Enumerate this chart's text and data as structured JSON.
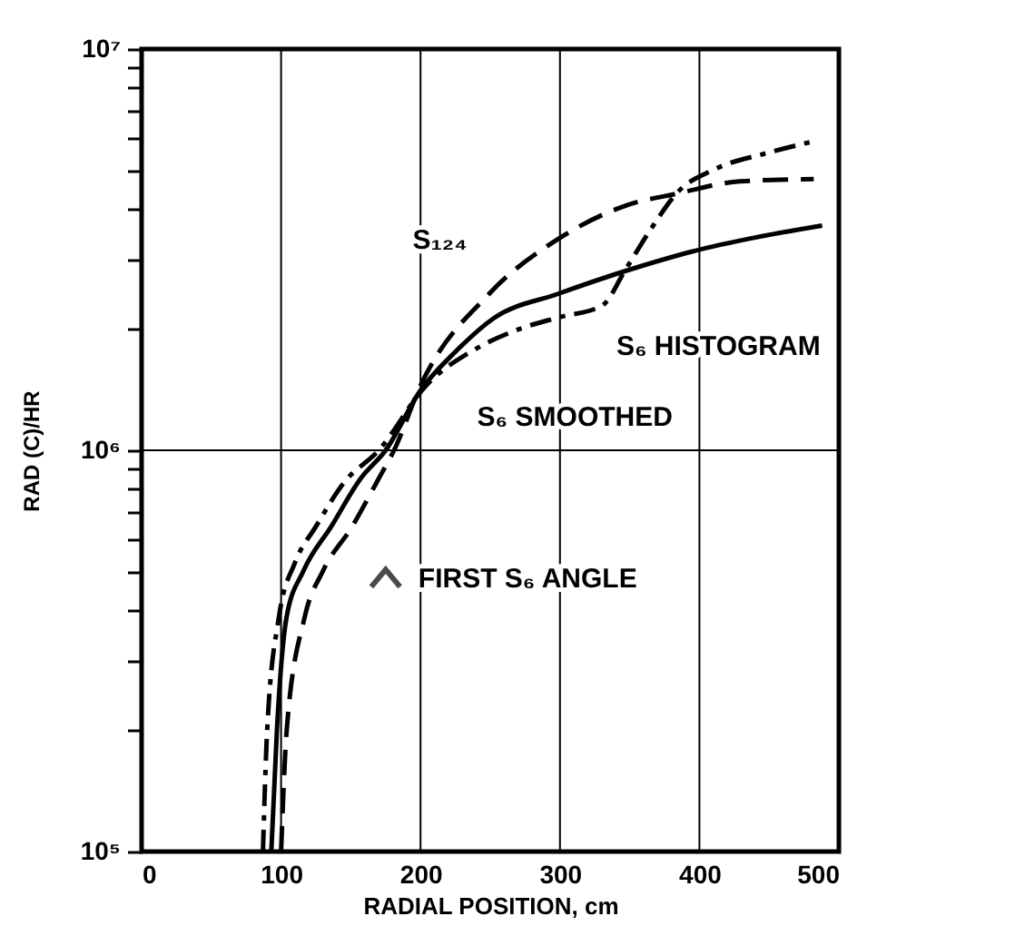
{
  "chart_data": {
    "type": "line",
    "xlabel": "RADIAL POSITION,  cm",
    "ylabel": "RAD (C)/HR",
    "xlim": [
      0,
      500
    ],
    "xticks": [
      0,
      100,
      200,
      300,
      400,
      500
    ],
    "ylim": [
      100000,
      10000000
    ],
    "log": true,
    "grid": true,
    "yticks": [
      {
        "value": 100000,
        "label": "10⁵"
      },
      {
        "value": 200000,
        "label": null
      },
      {
        "value": 300000,
        "label": null
      },
      {
        "value": 400000,
        "label": null
      },
      {
        "value": 500000,
        "label": null
      },
      {
        "value": 600000,
        "label": null
      },
      {
        "value": 700000,
        "label": null
      },
      {
        "value": 800000,
        "label": null
      },
      {
        "value": 900000,
        "label": null
      },
      {
        "value": 1000000,
        "label": "10⁶"
      },
      {
        "value": 2000000,
        "label": null
      },
      {
        "value": 3000000,
        "label": null
      },
      {
        "value": 4000000,
        "label": null
      },
      {
        "value": 5000000,
        "label": null
      },
      {
        "value": 6000000,
        "label": null
      },
      {
        "value": 7000000,
        "label": null
      },
      {
        "value": 8000000,
        "label": null
      },
      {
        "value": 9000000,
        "label": null
      },
      {
        "value": 10000000,
        "label": "10⁷"
      }
    ],
    "legend": false,
    "marker": "none",
    "series": [
      {
        "name": "S₁₂₄",
        "color": "#000000",
        "line_style": "dashed",
        "x": [
          100,
          104,
          117,
          130,
          151,
          170,
          181,
          200,
          249,
          298,
          347,
          385,
          429,
          482
        ],
        "values": [
          100000,
          200000,
          385000,
          500000,
          646000,
          850000,
          1000000,
          1450000,
          2450000,
          3350000,
          4070000,
          4370000,
          4680000,
          4740000
        ]
      },
      {
        "name": "S₆ HISTOGRAM",
        "color": "#000000",
        "line_style": "dashdot",
        "x": [
          87,
          90,
          98.5,
          110,
          125,
          145,
          170,
          204,
          241,
          270,
          298,
          330,
          347,
          365,
          385,
          410,
          448,
          482
        ],
        "values": [
          100000,
          200000,
          385000,
          525000,
          646000,
          830000,
          1000000,
          1450000,
          1800000,
          2000000,
          2140000,
          2290000,
          2820000,
          3550000,
          4420000,
          5000000,
          5500000,
          5890000
        ]
      },
      {
        "name": "S₆ SMOOTHED",
        "color": "#000000",
        "line_style": "solid",
        "x": [
          93,
          97,
          104,
          116,
          136,
          157,
          175,
          200,
          225,
          253,
          298,
          350,
          395,
          440,
          488
        ],
        "values": [
          100000,
          200000,
          385000,
          500000,
          646000,
          850000,
          1000000,
          1410000,
          1760000,
          2140000,
          2450000,
          2820000,
          3130000,
          3390000,
          3630000
        ]
      }
    ],
    "annotations": [
      {
        "text": "FIRST S₆ ANGLE",
        "x": 175,
        "y": 480000
      }
    ]
  }
}
